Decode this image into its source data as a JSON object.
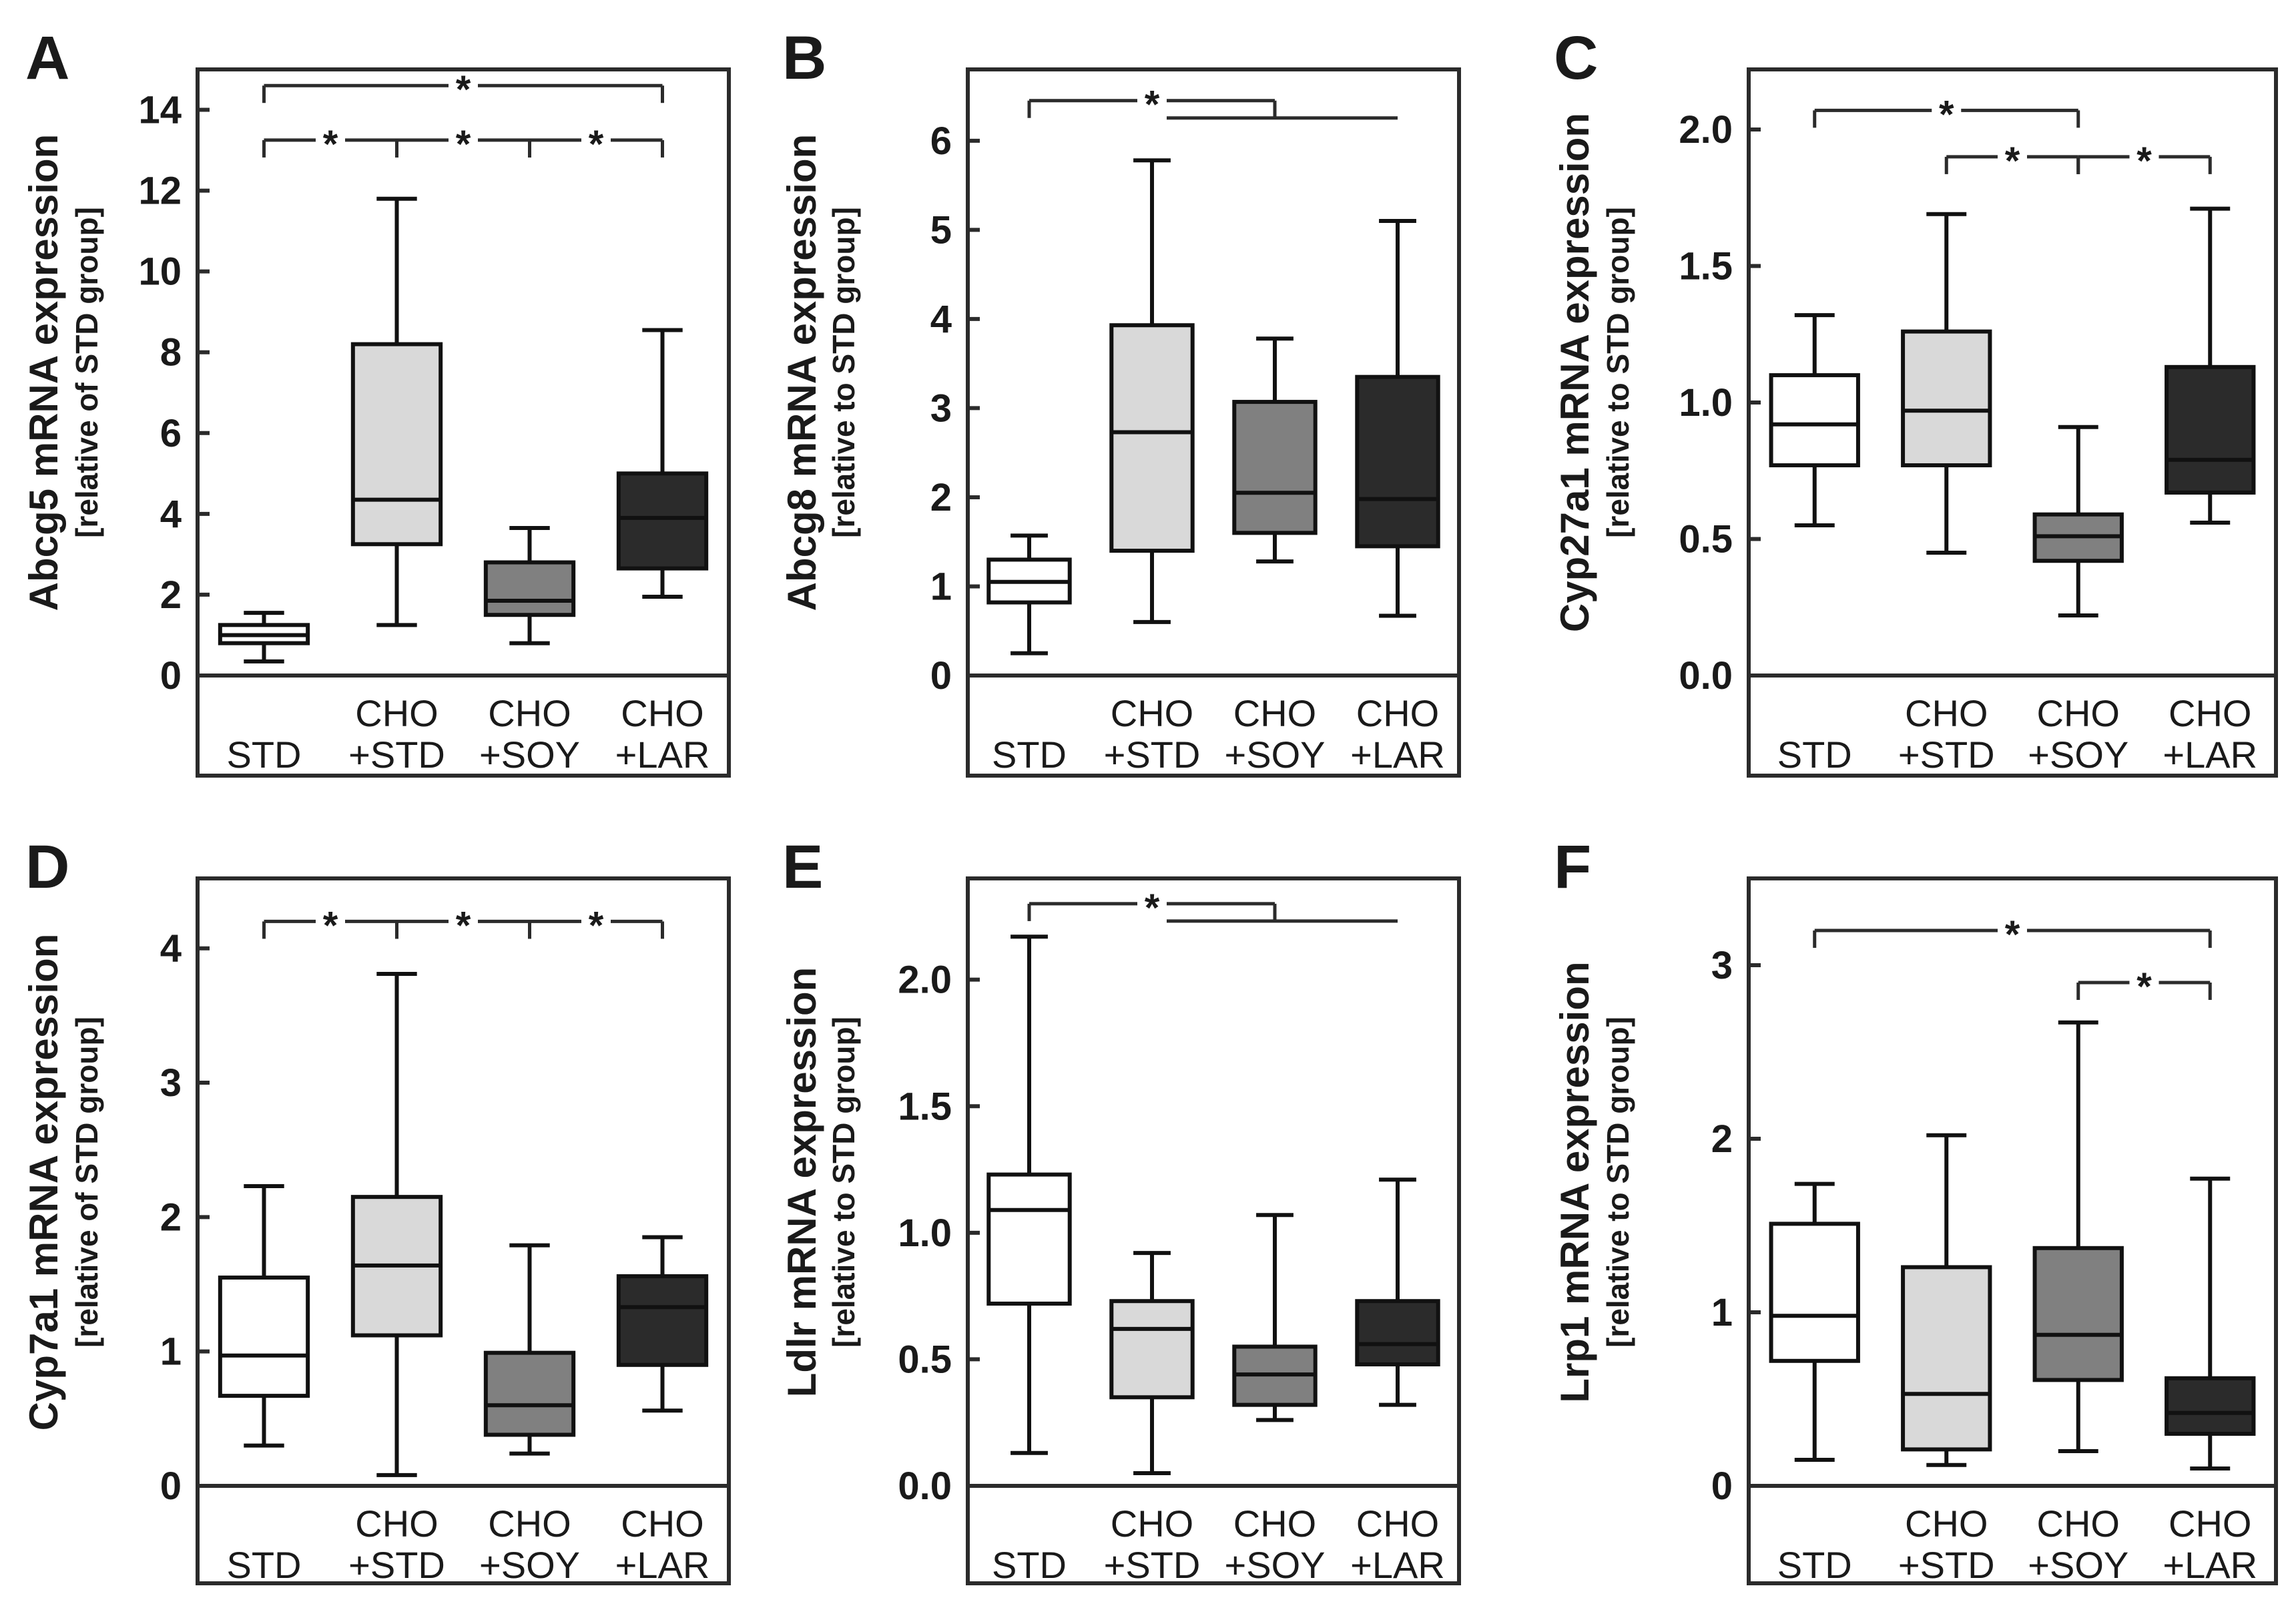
{
  "chart_data": [
    {
      "type": "boxplot",
      "panel_label": "A",
      "ylabel_main": "Abcg5 mRNA expression",
      "ylabel_sub": "[relative of STD group]",
      "ylim": [
        0,
        15
      ],
      "yticks": [
        "0",
        "2",
        "4",
        "6",
        "8",
        "10",
        "12",
        "14"
      ],
      "ytick_values": [
        0,
        2,
        4,
        6,
        8,
        10,
        12,
        14
      ],
      "categories": [
        {
          "line1": "",
          "line2": "STD"
        },
        {
          "line1": "CHO",
          "line2": "+STD"
        },
        {
          "line1": "CHO",
          "line2": "+SOY"
        },
        {
          "line1": "CHO",
          "line2": "+LAR"
        }
      ],
      "boxes": [
        {
          "min": 0.35,
          "q1": 0.8,
          "median": 1.0,
          "q3": 1.25,
          "max": 1.55,
          "fill": "#ffffff"
        },
        {
          "min": 1.25,
          "q1": 3.25,
          "median": 4.35,
          "q3": 8.2,
          "max": 11.8,
          "fill": "#d9d9d9"
        },
        {
          "min": 0.8,
          "q1": 1.5,
          "median": 1.85,
          "q3": 2.8,
          "max": 3.65,
          "fill": "#808080"
        },
        {
          "min": 1.95,
          "q1": 2.65,
          "median": 3.9,
          "q3": 5.0,
          "max": 8.55,
          "fill": "#2b2b2b"
        }
      ],
      "significance": [
        {
          "from": 0,
          "to": 3,
          "to2": null,
          "y": 14.6,
          "label": "*"
        },
        {
          "from": 0,
          "to": 1,
          "to2": null,
          "y": 13.25,
          "label": "*"
        },
        {
          "from": 1,
          "to": 2,
          "to2": null,
          "y": 13.25,
          "label": "*"
        },
        {
          "from": 2,
          "to": 3,
          "to2": null,
          "y": 13.25,
          "label": "*"
        }
      ]
    },
    {
      "type": "boxplot",
      "panel_label": "B",
      "ylabel_main": "Abcg8 mRNA expression",
      "ylabel_sub": "[relative to STD group]",
      "ylim": [
        0,
        6.8
      ],
      "yticks": [
        "0",
        "1",
        "2",
        "3",
        "4",
        "5",
        "6"
      ],
      "ytick_values": [
        0,
        1,
        2,
        3,
        4,
        5,
        6
      ],
      "categories": [
        {
          "line1": "",
          "line2": "STD"
        },
        {
          "line1": "CHO",
          "line2": "+STD"
        },
        {
          "line1": "CHO",
          "line2": "+SOY"
        },
        {
          "line1": "CHO",
          "line2": "+LAR"
        }
      ],
      "boxes": [
        {
          "min": 0.25,
          "q1": 0.82,
          "median": 1.05,
          "q3": 1.3,
          "max": 1.57,
          "fill": "#ffffff"
        },
        {
          "min": 0.6,
          "q1": 1.4,
          "median": 2.73,
          "q3": 3.93,
          "max": 5.78,
          "fill": "#d9d9d9"
        },
        {
          "min": 1.28,
          "q1": 1.6,
          "median": 2.05,
          "q3": 3.07,
          "max": 3.78,
          "fill": "#808080"
        },
        {
          "min": 0.67,
          "q1": 1.45,
          "median": 1.98,
          "q3": 3.35,
          "max": 5.1,
          "fill": "#2b2b2b"
        }
      ],
      "significance": [
        {
          "from": 0,
          "to": 2,
          "to2": 3,
          "y": 6.45,
          "label": "*"
        }
      ]
    },
    {
      "type": "boxplot",
      "panel_label": "C",
      "ylabel_main": "Cyp27a1 mRNA expression",
      "ylabel_sub": "[relative to STD group]",
      "ylim": [
        0,
        2.22
      ],
      "yticks": [
        "0.0",
        "0.5",
        "1.0",
        "1.5",
        "2.0"
      ],
      "ytick_values": [
        0,
        0.5,
        1.0,
        1.5,
        2.0
      ],
      "categories": [
        {
          "line1": "",
          "line2": "STD"
        },
        {
          "line1": "CHO",
          "line2": "+STD"
        },
        {
          "line1": "CHO",
          "line2": "+SOY"
        },
        {
          "line1": "CHO",
          "line2": "+LAR"
        }
      ],
      "boxes": [
        {
          "min": 0.55,
          "q1": 0.77,
          "median": 0.92,
          "q3": 1.1,
          "max": 1.32,
          "fill": "#ffffff"
        },
        {
          "min": 0.45,
          "q1": 0.77,
          "median": 0.97,
          "q3": 1.26,
          "max": 1.69,
          "fill": "#d9d9d9"
        },
        {
          "min": 0.22,
          "q1": 0.42,
          "median": 0.51,
          "q3": 0.59,
          "max": 0.91,
          "fill": "#808080"
        },
        {
          "min": 0.56,
          "q1": 0.67,
          "median": 0.79,
          "q3": 1.13,
          "max": 1.71,
          "fill": "#2b2b2b"
        }
      ],
      "significance": [
        {
          "from": 0,
          "to": 2,
          "to2": null,
          "y": 2.07,
          "label": "*"
        },
        {
          "from": 1,
          "to": 2,
          "to2": null,
          "y": 1.9,
          "label": "*"
        },
        {
          "from": 2,
          "to": 3,
          "to2": null,
          "y": 1.9,
          "label": "*"
        }
      ]
    },
    {
      "type": "boxplot",
      "panel_label": "D",
      "ylabel_main": "Cyp7a1 mRNA expression",
      "ylabel_sub": "[relative of STD group]",
      "ylim": [
        0,
        4.52
      ],
      "yticks": [
        "0",
        "1",
        "2",
        "3",
        "4"
      ],
      "ytick_values": [
        0,
        1,
        2,
        3,
        4
      ],
      "categories": [
        {
          "line1": "",
          "line2": "STD"
        },
        {
          "line1": "CHO",
          "line2": "+STD"
        },
        {
          "line1": "CHO",
          "line2": "+SOY"
        },
        {
          "line1": "CHO",
          "line2": "+LAR"
        }
      ],
      "boxes": [
        {
          "min": 0.3,
          "q1": 0.67,
          "median": 0.97,
          "q3": 1.55,
          "max": 2.23,
          "fill": "#ffffff"
        },
        {
          "min": 0.08,
          "q1": 1.12,
          "median": 1.64,
          "q3": 2.15,
          "max": 3.81,
          "fill": "#d9d9d9"
        },
        {
          "min": 0.24,
          "q1": 0.38,
          "median": 0.6,
          "q3": 0.99,
          "max": 1.79,
          "fill": "#808080"
        },
        {
          "min": 0.56,
          "q1": 0.9,
          "median": 1.33,
          "q3": 1.56,
          "max": 1.85,
          "fill": "#2b2b2b"
        }
      ],
      "significance": [
        {
          "from": 0,
          "to": 1,
          "to2": null,
          "y": 4.2,
          "label": "*"
        },
        {
          "from": 1,
          "to": 2,
          "to2": null,
          "y": 4.2,
          "label": "*"
        },
        {
          "from": 2,
          "to": 3,
          "to2": null,
          "y": 4.2,
          "label": "*"
        }
      ]
    },
    {
      "type": "boxplot",
      "panel_label": "E",
      "ylabel_main": "Ldlr mRNA expression",
      "ylabel_sub": "[relative to STD group]",
      "ylim": [
        0,
        2.4
      ],
      "yticks": [
        "0.0",
        "0.5",
        "1.0",
        "1.5",
        "2.0"
      ],
      "ytick_values": [
        0,
        0.5,
        1.0,
        1.5,
        2.0
      ],
      "categories": [
        {
          "line1": "",
          "line2": "STD"
        },
        {
          "line1": "CHO",
          "line2": "+STD"
        },
        {
          "line1": "CHO",
          "line2": "+SOY"
        },
        {
          "line1": "CHO",
          "line2": "+LAR"
        }
      ],
      "boxes": [
        {
          "min": 0.13,
          "q1": 0.72,
          "median": 1.09,
          "q3": 1.23,
          "max": 2.17,
          "fill": "#ffffff"
        },
        {
          "min": 0.05,
          "q1": 0.35,
          "median": 0.62,
          "q3": 0.73,
          "max": 0.92,
          "fill": "#d9d9d9"
        },
        {
          "min": 0.26,
          "q1": 0.32,
          "median": 0.44,
          "q3": 0.55,
          "max": 1.07,
          "fill": "#808080"
        },
        {
          "min": 0.32,
          "q1": 0.48,
          "median": 0.56,
          "q3": 0.73,
          "max": 1.21,
          "fill": "#2b2b2b"
        }
      ],
      "significance": [
        {
          "from": 0,
          "to": 2,
          "to2": 3,
          "y": 2.3,
          "label": "*"
        }
      ]
    },
    {
      "type": "boxplot",
      "panel_label": "F",
      "ylabel_main": "Lrp1 mRNA expression",
      "ylabel_sub": "[relative to STD group]",
      "ylim": [
        0,
        3.5
      ],
      "yticks": [
        "0",
        "1",
        "2",
        "3"
      ],
      "ytick_values": [
        0,
        1,
        2,
        3
      ],
      "categories": [
        {
          "line1": "",
          "line2": "STD"
        },
        {
          "line1": "CHO",
          "line2": "+STD"
        },
        {
          "line1": "CHO",
          "line2": "+SOY"
        },
        {
          "line1": "CHO",
          "line2": "+LAR"
        }
      ],
      "boxes": [
        {
          "min": 0.15,
          "q1": 0.72,
          "median": 0.98,
          "q3": 1.51,
          "max": 1.74,
          "fill": "#ffffff"
        },
        {
          "min": 0.12,
          "q1": 0.21,
          "median": 0.53,
          "q3": 1.26,
          "max": 2.02,
          "fill": "#d9d9d9"
        },
        {
          "min": 0.2,
          "q1": 0.61,
          "median": 0.87,
          "q3": 1.37,
          "max": 2.67,
          "fill": "#808080"
        },
        {
          "min": 0.1,
          "q1": 0.3,
          "median": 0.42,
          "q3": 0.62,
          "max": 1.77,
          "fill": "#2b2b2b"
        }
      ],
      "significance": [
        {
          "from": 0,
          "to": 3,
          "to2": null,
          "y": 3.2,
          "label": "*"
        },
        {
          "from": 2,
          "to": 3,
          "to2": null,
          "y": 2.9,
          "label": "*"
        }
      ]
    }
  ]
}
